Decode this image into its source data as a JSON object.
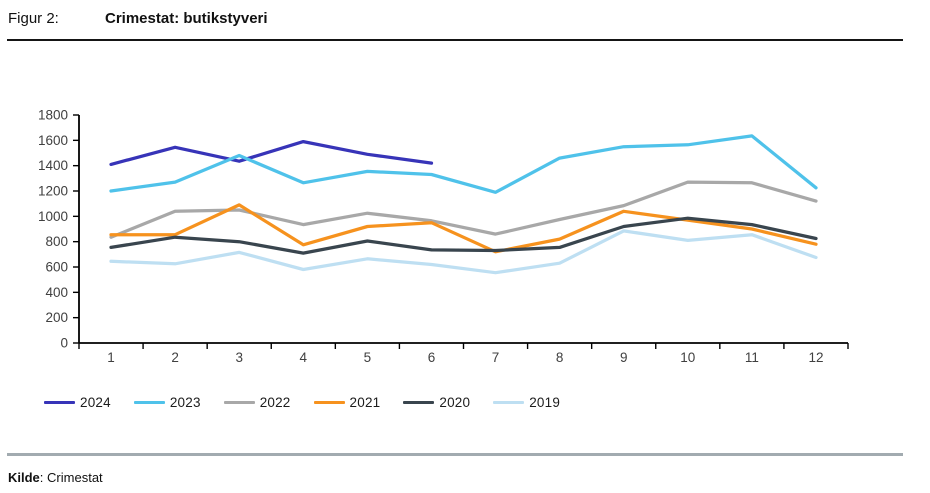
{
  "header": {
    "figure_label": "Figur 2:",
    "title": "Crimestat: butikstyveri"
  },
  "footer": {
    "source_label": "Kilde",
    "colon": ":",
    "source": "Crimestat"
  },
  "chart_data": {
    "type": "line",
    "title": "Crimestat: butikstyveri",
    "xlabel": "",
    "ylabel": "",
    "x_categories": [
      "1",
      "2",
      "3",
      "4",
      "5",
      "6",
      "7",
      "8",
      "9",
      "10",
      "11",
      "12"
    ],
    "ylim": [
      0,
      1800
    ],
    "ytick_step": 200,
    "ytick_labels": [
      "0",
      "200",
      "400",
      "600",
      "800",
      "1000",
      "1200",
      "1400",
      "1600",
      "1800"
    ],
    "grid": false,
    "legend_position": "bottom-left",
    "axis_color": "#000000",
    "tick_label_color": "#404040",
    "series": [
      {
        "name": "2024",
        "color": "#3734b8",
        "values": [
          1410,
          1545,
          1435,
          1590,
          1490,
          1420
        ]
      },
      {
        "name": "2023",
        "color": "#4fc2ea",
        "values": [
          1200,
          1270,
          1480,
          1265,
          1355,
          1330,
          1190,
          1460,
          1550,
          1565,
          1635,
          1225
        ]
      },
      {
        "name": "2022",
        "color": "#a8a8a8",
        "values": [
          835,
          1040,
          1050,
          935,
          1025,
          965,
          860,
          975,
          1085,
          1270,
          1265,
          1120
        ]
      },
      {
        "name": "2021",
        "color": "#f6921e",
        "values": [
          855,
          855,
          1090,
          775,
          920,
          950,
          720,
          820,
          1040,
          970,
          900,
          780
        ]
      },
      {
        "name": "2020",
        "color": "#39454e",
        "values": [
          755,
          835,
          800,
          710,
          805,
          735,
          730,
          755,
          920,
          985,
          935,
          825
        ]
      },
      {
        "name": "2019",
        "color": "#bedff2",
        "values": [
          645,
          625,
          715,
          580,
          665,
          620,
          555,
          630,
          885,
          810,
          855,
          675
        ]
      }
    ]
  }
}
